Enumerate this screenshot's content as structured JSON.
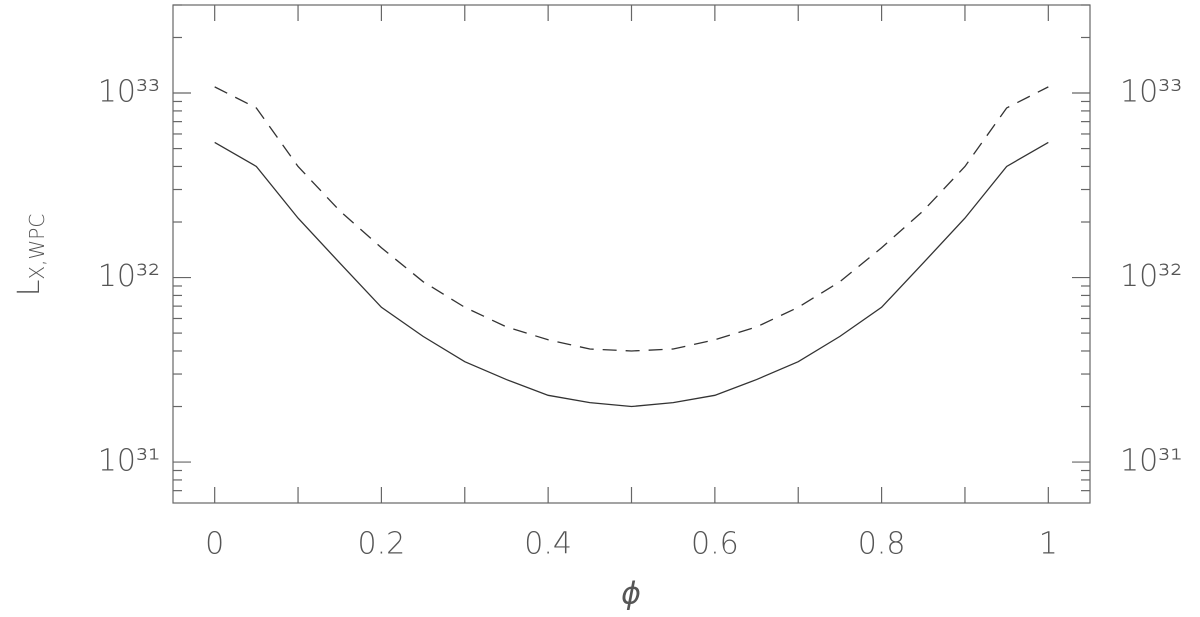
{
  "chart_data": {
    "type": "line",
    "xlabel": "ϕ",
    "ylabel": {
      "main": "L",
      "sub": "X,WPC"
    },
    "x": [
      0,
      0.05,
      0.1,
      0.15,
      0.2,
      0.25,
      0.3,
      0.35,
      0.4,
      0.45,
      0.5,
      0.55,
      0.6,
      0.65,
      0.7,
      0.75,
      0.8,
      0.85,
      0.9,
      0.95,
      1
    ],
    "series": [
      {
        "color": "#333333",
        "dashed": false,
        "values": [
          5.4e+32,
          4e+32,
          2.1e+32,
          1.2e+32,
          6.9e+31,
          4.8e+31,
          3.5e+31,
          2.8e+31,
          2.3e+31,
          2.1e+31,
          2e+31,
          2.1e+31,
          2.3e+31,
          2.8e+31,
          3.5e+31,
          4.8e+31,
          6.9e+31,
          1.2e+32,
          2.1e+32,
          4e+32,
          5.4e+32
        ]
      },
      {
        "color": "#333333",
        "dashed": true,
        "values": [
          1.08e+33,
          8.3e+32,
          4e+32,
          2.3e+32,
          1.45e+32,
          9.5e+31,
          6.9e+31,
          5.4e+31,
          4.6e+31,
          4.1e+31,
          4e+31,
          4.1e+31,
          4.6e+31,
          5.4e+31,
          6.9e+31,
          9.5e+31,
          1.45e+32,
          2.3e+32,
          4e+32,
          8.3e+32,
          1.08e+33
        ]
      }
    ],
    "xlim": [
      -0.05,
      1.05
    ],
    "xticks": [
      0,
      0.2,
      0.4,
      0.6,
      0.8,
      1
    ],
    "xminorticks": [
      0.1,
      0.3,
      0.5,
      0.7,
      0.9
    ],
    "ylim": [
      6e+30,
      3e+33
    ],
    "ylog": true,
    "yticks": [
      {
        "value": 1e+31,
        "label": "10³¹"
      },
      {
        "value": 1e+32,
        "label": "10³²"
      },
      {
        "value": 1e+33,
        "label": "10³³"
      }
    ],
    "yminorticks": [
      7e+30,
      8e+30,
      9e+30,
      2e+31,
      3e+31,
      4e+31,
      5e+31,
      6e+31,
      7e+31,
      8e+31,
      9e+31,
      2e+32,
      3e+32,
      4e+32,
      5e+32,
      6e+32,
      7e+32,
      8e+32,
      9e+32,
      2e+33,
      3e+33
    ],
    "grid": false
  }
}
